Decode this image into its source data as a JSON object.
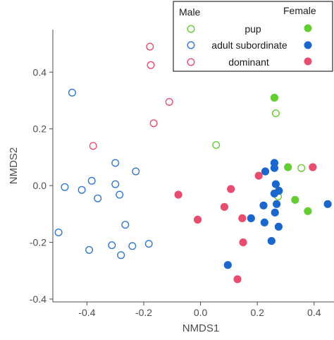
{
  "chart_data": {
    "type": "scatter",
    "xlabel": "NMDS1",
    "ylabel": "NMDS2",
    "xlim": [
      -0.52,
      0.47
    ],
    "ylim": [
      -0.41,
      0.55
    ],
    "x_ticks": [
      -0.4,
      -0.2,
      0.0,
      0.2,
      0.4
    ],
    "x_tick_labels": [
      "-0.4",
      "-0.2",
      "0.0",
      "0.2",
      "0.4"
    ],
    "y_ticks": [
      -0.4,
      -0.2,
      0.0,
      0.2,
      0.4
    ],
    "y_tick_labels": [
      "-0.4",
      "-0.2",
      "0.0",
      "0.2",
      "0.4"
    ],
    "grid": false,
    "legend": {
      "placement": "top-right",
      "header_left": "Male",
      "header_right": "Female",
      "rows": [
        "pup",
        "adult subordinate",
        "dominant"
      ]
    },
    "series": [
      {
        "name": "pup",
        "sex": "Male",
        "marker": "open",
        "color": "#66cc33",
        "points": [
          [
            0.055,
            0.143
          ],
          [
            0.265,
            0.255
          ],
          [
            0.273,
            -0.038
          ],
          [
            0.355,
            0.062
          ]
        ]
      },
      {
        "name": "pup",
        "sex": "Female",
        "marker": "filled",
        "color": "#66cc33",
        "points": [
          [
            0.26,
            0.31
          ],
          [
            0.308,
            0.065
          ],
          [
            0.333,
            -0.05
          ],
          [
            0.378,
            -0.09
          ]
        ]
      },
      {
        "name": "adult subordinate",
        "sex": "Male",
        "marker": "open",
        "color": "#3377cc",
        "points": [
          [
            -0.452,
            0.328
          ],
          [
            -0.3,
            0.08
          ],
          [
            -0.383,
            0.017
          ],
          [
            -0.228,
            0.05
          ],
          [
            -0.478,
            -0.005
          ],
          [
            -0.418,
            -0.015
          ],
          [
            -0.362,
            -0.045
          ],
          [
            -0.3,
            0.005
          ],
          [
            -0.285,
            -0.032
          ],
          [
            -0.265,
            -0.138
          ],
          [
            -0.5,
            -0.165
          ],
          [
            -0.312,
            -0.21
          ],
          [
            -0.24,
            -0.213
          ],
          [
            -0.182,
            -0.205
          ],
          [
            -0.392,
            -0.227
          ],
          [
            -0.28,
            -0.245
          ]
        ]
      },
      {
        "name": "adult subordinate",
        "sex": "Female",
        "marker": "filled",
        "color": "#1a66cc",
        "points": [
          [
            0.26,
            0.08
          ],
          [
            0.26,
            0.062
          ],
          [
            0.228,
            0.05
          ],
          [
            0.265,
            0.005
          ],
          [
            0.276,
            -0.018
          ],
          [
            0.26,
            -0.028
          ],
          [
            0.268,
            -0.065
          ],
          [
            0.222,
            -0.07
          ],
          [
            0.178,
            -0.115
          ],
          [
            0.225,
            -0.13
          ],
          [
            0.275,
            -0.145
          ],
          [
            0.448,
            -0.065
          ],
          [
            0.25,
            -0.195
          ],
          [
            0.262,
            -0.095
          ],
          [
            0.096,
            -0.28
          ]
        ]
      },
      {
        "name": "dominant",
        "sex": "Male",
        "marker": "open",
        "color": "#e64d6e",
        "points": [
          [
            -0.178,
            0.49
          ],
          [
            -0.175,
            0.425
          ],
          [
            -0.11,
            0.295
          ],
          [
            -0.165,
            0.22
          ],
          [
            -0.378,
            0.14
          ]
        ]
      },
      {
        "name": "dominant",
        "sex": "Female",
        "marker": "filled",
        "color": "#e64d6e",
        "points": [
          [
            0.395,
            0.065
          ],
          [
            0.205,
            0.035
          ],
          [
            -0.078,
            -0.032
          ],
          [
            0.107,
            -0.012
          ],
          [
            0.084,
            -0.075
          ],
          [
            -0.01,
            -0.12
          ],
          [
            0.147,
            -0.115
          ],
          [
            0.15,
            -0.2
          ],
          [
            0.13,
            -0.33
          ]
        ]
      }
    ]
  }
}
